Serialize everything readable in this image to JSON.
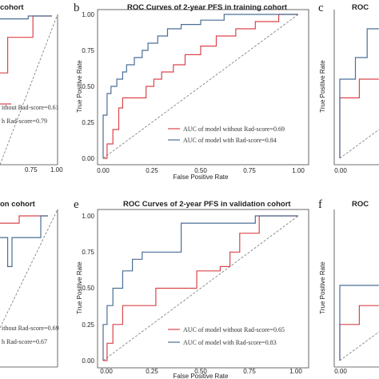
{
  "colors": {
    "without": "#d9464b",
    "with": "#4a6f96",
    "diagonal": "#777777",
    "axis": "#444444"
  },
  "chart_data": [
    {
      "panel": "a",
      "type": "line",
      "title": "cohort",
      "xlabel": "",
      "ylabel": "",
      "xticks": [
        "0.75",
        "1.00"
      ],
      "yticks": [],
      "legend": [
        "ithout Rad-score=0.61",
        "h Rad-score=0.79"
      ],
      "series": [
        {
          "name": "without",
          "points": [
            [
              0.25,
              0.25
            ],
            [
              0.42,
              0.25
            ],
            [
              0.42,
              0.45
            ],
            [
              0.55,
              0.45
            ],
            [
              0.55,
              0.52
            ],
            [
              0.63,
              0.52
            ],
            [
              0.63,
              0.6
            ],
            [
              0.72,
              0.6
            ],
            [
              0.72,
              0.85
            ],
            [
              0.88,
              0.85
            ],
            [
              0.88,
              1.0
            ],
            [
              1.0,
              1.0
            ]
          ]
        },
        {
          "name": "with",
          "points": [
            [
              0.25,
              0.6
            ],
            [
              0.4,
              0.6
            ],
            [
              0.4,
              0.7
            ],
            [
              0.5,
              0.7
            ],
            [
              0.5,
              0.8
            ],
            [
              0.6,
              0.8
            ],
            [
              0.6,
              0.98
            ],
            [
              0.85,
              0.98
            ],
            [
              0.85,
              1.0
            ],
            [
              1.0,
              1.0
            ]
          ]
        }
      ]
    },
    {
      "panel": "b",
      "type": "line",
      "title": "ROC Curves of 2-year PFS in training cohort",
      "xlabel": "False Positive Rate",
      "ylabel": "True Positive Rate",
      "xticks": [
        "0.00",
        "0.25",
        "0.50",
        "0.75",
        "1.00"
      ],
      "yticks": [
        "0.00",
        "0.25",
        "0.50",
        "0.75",
        "1.00"
      ],
      "legend": [
        "AUC of model without Rad-score=0.69",
        "AUC of model with Rad-score=0.84"
      ],
      "series": [
        {
          "name": "AUC of model without Rad-score=0.69",
          "points": [
            [
              0,
              0
            ],
            [
              0.02,
              0
            ],
            [
              0.02,
              0.1
            ],
            [
              0.05,
              0.1
            ],
            [
              0.05,
              0.2
            ],
            [
              0.08,
              0.2
            ],
            [
              0.08,
              0.35
            ],
            [
              0.1,
              0.35
            ],
            [
              0.1,
              0.42
            ],
            [
              0.22,
              0.42
            ],
            [
              0.22,
              0.5
            ],
            [
              0.26,
              0.5
            ],
            [
              0.26,
              0.55
            ],
            [
              0.3,
              0.55
            ],
            [
              0.3,
              0.6
            ],
            [
              0.36,
              0.6
            ],
            [
              0.36,
              0.65
            ],
            [
              0.42,
              0.65
            ],
            [
              0.42,
              0.72
            ],
            [
              0.5,
              0.72
            ],
            [
              0.5,
              0.78
            ],
            [
              0.58,
              0.78
            ],
            [
              0.58,
              0.85
            ],
            [
              0.68,
              0.85
            ],
            [
              0.68,
              0.9
            ],
            [
              0.78,
              0.9
            ],
            [
              0.78,
              0.95
            ],
            [
              0.9,
              0.95
            ],
            [
              0.9,
              1.0
            ],
            [
              1.0,
              1.0
            ]
          ]
        },
        {
          "name": "AUC of model with Rad-score=0.84",
          "points": [
            [
              0,
              0
            ],
            [
              0,
              0.3
            ],
            [
              0.02,
              0.3
            ],
            [
              0.02,
              0.45
            ],
            [
              0.04,
              0.45
            ],
            [
              0.04,
              0.5
            ],
            [
              0.07,
              0.5
            ],
            [
              0.07,
              0.55
            ],
            [
              0.1,
              0.55
            ],
            [
              0.1,
              0.6
            ],
            [
              0.12,
              0.6
            ],
            [
              0.12,
              0.65
            ],
            [
              0.16,
              0.65
            ],
            [
              0.16,
              0.7
            ],
            [
              0.2,
              0.7
            ],
            [
              0.2,
              0.75
            ],
            [
              0.23,
              0.75
            ],
            [
              0.23,
              0.8
            ],
            [
              0.28,
              0.8
            ],
            [
              0.28,
              0.85
            ],
            [
              0.33,
              0.85
            ],
            [
              0.33,
              0.9
            ],
            [
              0.4,
              0.9
            ],
            [
              0.4,
              0.93
            ],
            [
              0.5,
              0.93
            ],
            [
              0.5,
              0.96
            ],
            [
              0.62,
              0.96
            ],
            [
              0.62,
              1.0
            ],
            [
              1.0,
              1.0
            ]
          ]
        }
      ]
    },
    {
      "panel": "c",
      "type": "line",
      "title": "ROC",
      "xlabel": "",
      "ylabel": "True Positive Rate",
      "xticks": [
        "0.00"
      ],
      "yticks": [],
      "legend": [],
      "series": [
        {
          "name": "without",
          "points": [
            [
              0,
              0
            ],
            [
              0,
              0.42
            ],
            [
              0.1,
              0.42
            ],
            [
              0.1,
              0.55
            ],
            [
              0.2,
              0.55
            ]
          ]
        },
        {
          "name": "with",
          "points": [
            [
              0,
              0
            ],
            [
              0,
              0.55
            ],
            [
              0.08,
              0.55
            ],
            [
              0.08,
              0.7
            ],
            [
              0.14,
              0.7
            ],
            [
              0.14,
              0.9
            ],
            [
              0.2,
              0.9
            ]
          ]
        }
      ]
    },
    {
      "panel": "d",
      "type": "line",
      "title": "on cohort",
      "xlabel": "",
      "ylabel": "",
      "xticks": [
        "0.75",
        "1.00"
      ],
      "yticks": [],
      "legend": [
        "ithout Rad-score=0.69",
        "h Rad-score=0.67"
      ],
      "series": [
        {
          "name": "without",
          "points": [
            [
              0.5,
              0.95
            ],
            [
              0.8,
              0.95
            ],
            [
              0.8,
              1.0
            ],
            [
              1.0,
              1.0
            ]
          ]
        },
        {
          "name": "with",
          "points": [
            [
              0.5,
              0.85
            ],
            [
              0.72,
              0.85
            ],
            [
              0.72,
              0.65
            ],
            [
              0.75,
              0.65
            ],
            [
              0.75,
              0.85
            ],
            [
              0.95,
              0.85
            ],
            [
              0.95,
              1.0
            ],
            [
              1.0,
              1.0
            ]
          ]
        }
      ]
    },
    {
      "panel": "e",
      "type": "line",
      "title": "ROC Curves of 2-year PFS in validation cohort",
      "xlabel": "False Positive Rate",
      "ylabel": "True Positive Rate",
      "xticks": [
        "0.00",
        "0.25",
        "0.50",
        "0.75",
        "1.00"
      ],
      "yticks": [
        "0.00",
        "0.25",
        "0.50",
        "0.75",
        "1.00"
      ],
      "legend": [
        "AUC of model without Rad-score=0.65",
        "AUC of model with Rad-score=0.83"
      ],
      "series": [
        {
          "name": "AUC of model without Rad-score=0.65",
          "points": [
            [
              0,
              0
            ],
            [
              0.02,
              0
            ],
            [
              0.02,
              0.12
            ],
            [
              0.05,
              0.12
            ],
            [
              0.05,
              0.25
            ],
            [
              0.1,
              0.25
            ],
            [
              0.1,
              0.38
            ],
            [
              0.27,
              0.38
            ],
            [
              0.27,
              0.5
            ],
            [
              0.48,
              0.5
            ],
            [
              0.48,
              0.62
            ],
            [
              0.6,
              0.62
            ],
            [
              0.6,
              0.65
            ],
            [
              0.65,
              0.65
            ],
            [
              0.65,
              0.75
            ],
            [
              0.7,
              0.75
            ],
            [
              0.7,
              0.88
            ],
            [
              0.8,
              0.88
            ],
            [
              0.8,
              1.0
            ],
            [
              1.0,
              1.0
            ]
          ]
        },
        {
          "name": "AUC of model with Rad-score=0.83",
          "points": [
            [
              0,
              0
            ],
            [
              0,
              0.25
            ],
            [
              0.02,
              0.25
            ],
            [
              0.02,
              0.38
            ],
            [
              0.05,
              0.38
            ],
            [
              0.05,
              0.5
            ],
            [
              0.1,
              0.5
            ],
            [
              0.1,
              0.62
            ],
            [
              0.15,
              0.62
            ],
            [
              0.15,
              0.7
            ],
            [
              0.2,
              0.7
            ],
            [
              0.2,
              0.75
            ],
            [
              0.4,
              0.75
            ],
            [
              0.4,
              0.95
            ],
            [
              0.78,
              0.95
            ],
            [
              0.78,
              1.0
            ],
            [
              1.0,
              1.0
            ]
          ]
        }
      ]
    },
    {
      "panel": "f",
      "type": "line",
      "title": "ROC",
      "xlabel": "",
      "ylabel": "True Positive Rate",
      "xticks": [
        "0.00"
      ],
      "yticks": [],
      "legend": [],
      "series": [
        {
          "name": "without",
          "points": [
            [
              0,
              0
            ],
            [
              0,
              0.25
            ],
            [
              0.1,
              0.25
            ],
            [
              0.1,
              0.38
            ],
            [
              0.2,
              0.38
            ]
          ]
        },
        {
          "name": "with",
          "points": [
            [
              0,
              0
            ],
            [
              0,
              0.52
            ],
            [
              0.2,
              0.52
            ]
          ]
        }
      ]
    }
  ],
  "labels": {
    "a_title": "cohort",
    "b_letter": "b",
    "b_title": "ROC Curves of 2-year PFS in training cohort",
    "c_letter": "c",
    "c_title": "ROC",
    "d_title": "on cohort",
    "e_letter": "e",
    "e_title": "ROC Curves of 2-year PFS in validation cohort",
    "f_letter": "f",
    "f_title": "ROC",
    "xlabel": "False Positive Rate",
    "ylabel": "True Positive Rate",
    "a_leg1": "ithout Rad-score=0.61",
    "a_leg2": "h Rad-score=0.79",
    "b_leg1": "AUC of model without Rad-score=0.69",
    "b_leg2": "AUC of model with Rad-score=0.84",
    "d_leg1": "ithout Rad-score=0.69",
    "d_leg2": "h Rad-score=0.67",
    "e_leg1": "AUC of model without Rad-score=0.65",
    "e_leg2": "AUC of model with Rad-score=0.83",
    "t000": "0.00",
    "t025": "0.25",
    "t050": "0.50",
    "t075": "0.75",
    "t100": "1.00"
  }
}
